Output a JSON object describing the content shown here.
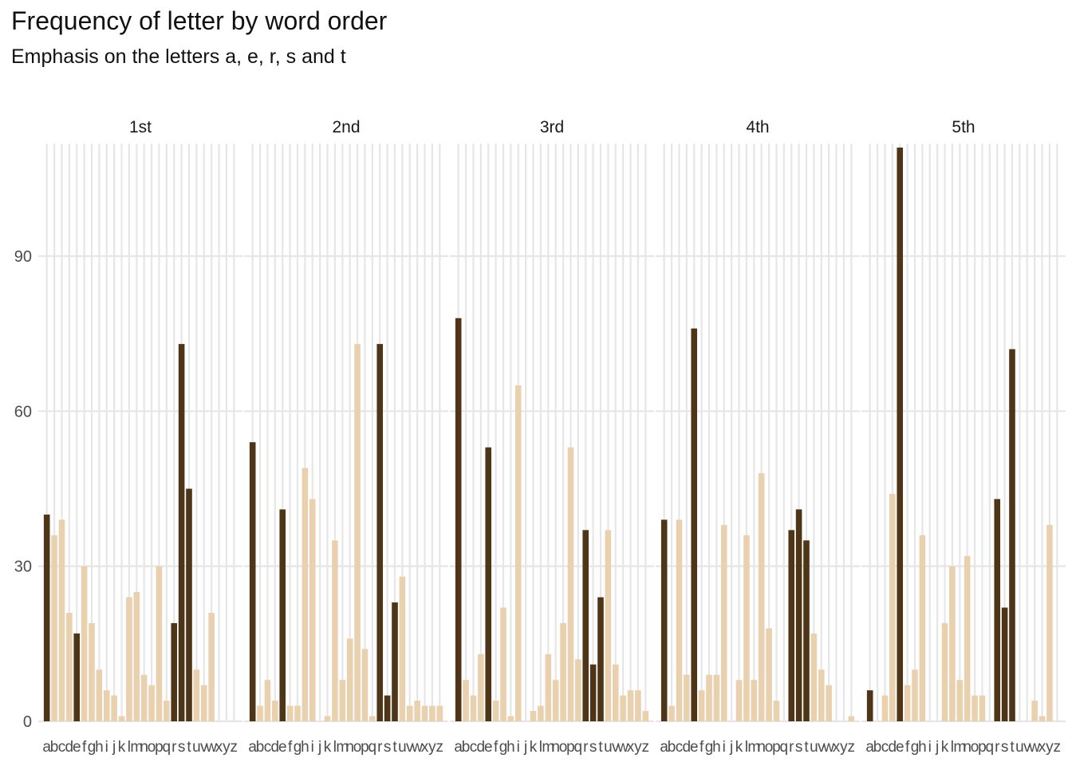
{
  "chart_data": {
    "type": "bar",
    "title": "Frequency of letter by word order",
    "subtitle": "Emphasis on the letters a, e, r, s and t",
    "xlabel": "",
    "ylabel": "",
    "categories": [
      "a",
      "b",
      "c",
      "d",
      "e",
      "f",
      "g",
      "h",
      "i",
      "j",
      "k",
      "l",
      "m",
      "n",
      "o",
      "p",
      "q",
      "r",
      "s",
      "t",
      "u",
      "v",
      "w",
      "x",
      "y",
      "z"
    ],
    "emphasis": [
      "a",
      "e",
      "r",
      "s",
      "t"
    ],
    "y_ticks": [
      0,
      30,
      60,
      90
    ],
    "ylim": [
      0,
      112
    ],
    "grid": true,
    "colors": {
      "emphasis": "#4f3518",
      "other": "#e9d1b0",
      "grid": "#e6e6e6"
    },
    "facets": [
      {
        "name": "1st",
        "values": [
          40,
          36,
          39,
          21,
          17,
          30,
          19,
          10,
          6,
          5,
          1,
          24,
          25,
          9,
          7,
          30,
          4,
          19,
          73,
          45,
          10,
          7,
          21,
          0,
          0,
          0
        ]
      },
      {
        "name": "2nd",
        "values": [
          54,
          3,
          8,
          4,
          41,
          3,
          3,
          49,
          43,
          0,
          1,
          35,
          8,
          16,
          73,
          14,
          1,
          73,
          5,
          23,
          28,
          3,
          4,
          3,
          3,
          3
        ]
      },
      {
        "name": "3rd",
        "values": [
          78,
          8,
          5,
          13,
          53,
          4,
          22,
          1,
          65,
          0,
          2,
          3,
          13,
          8,
          19,
          53,
          12,
          37,
          11,
          24,
          37,
          11,
          5,
          6,
          6,
          2
        ]
      },
      {
        "name": "4th",
        "values": [
          39,
          3,
          39,
          9,
          76,
          6,
          9,
          9,
          38,
          0,
          8,
          36,
          8,
          48,
          18,
          4,
          0,
          37,
          41,
          35,
          17,
          10,
          7,
          0,
          0,
          1
        ]
      },
      {
        "name": "5th",
        "values": [
          6,
          0,
          5,
          44,
          111,
          7,
          10,
          36,
          0,
          0,
          19,
          30,
          8,
          32,
          5,
          5,
          0,
          43,
          22,
          72,
          0,
          0,
          4,
          1,
          38,
          0
        ]
      }
    ]
  }
}
